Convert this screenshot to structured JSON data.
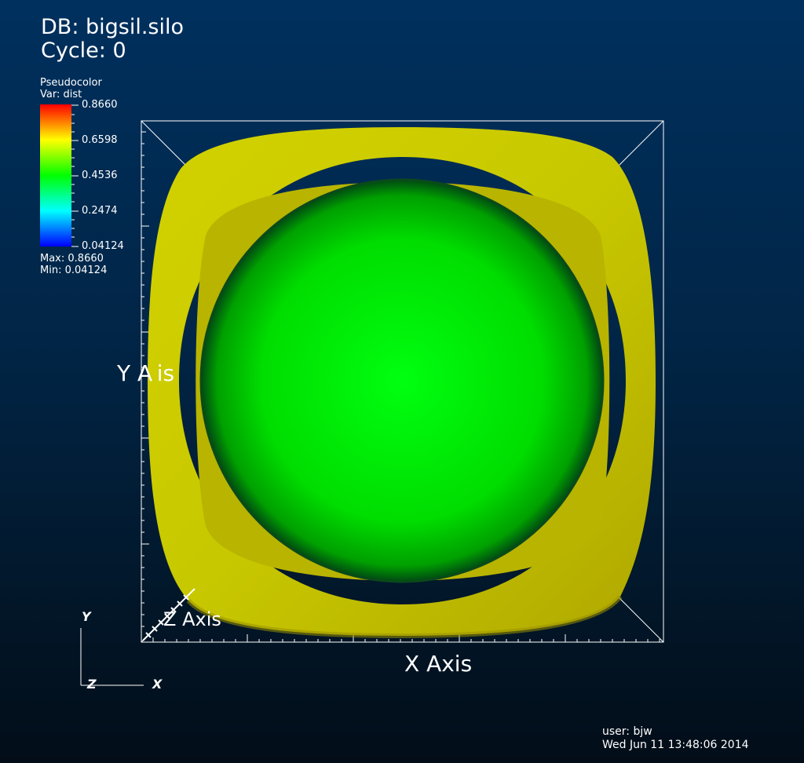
{
  "header": {
    "db_label": "DB: bigsil.silo",
    "cycle_label": "Cycle: 0"
  },
  "legend": {
    "plot_type": "Pseudocolor",
    "variable": "Var: dist",
    "ticks": [
      "0.8660",
      "0.6598",
      "0.4536",
      "0.2474",
      "0.04124"
    ],
    "max_label": "Max:  0.8660",
    "min_label": "Min:  0.04124",
    "colors": [
      "#ff0000",
      "#ffff00",
      "#00ff00",
      "#00ffff",
      "#0000ff"
    ]
  },
  "axes": {
    "x_title": "X Axis",
    "y_title": "Y A\u0000is",
    "z_title": "Z Axis"
  },
  "triad": {
    "x": "X",
    "y": "Y",
    "z": "Z"
  },
  "footer": {
    "user": "user: bjw",
    "timestamp": "Wed Jun 11 13:48:06 2014"
  },
  "scene": {
    "outer_surface_color": "#c8c800",
    "inner_sphere_color": "#00e000",
    "box_line_color": "#ffffff"
  }
}
